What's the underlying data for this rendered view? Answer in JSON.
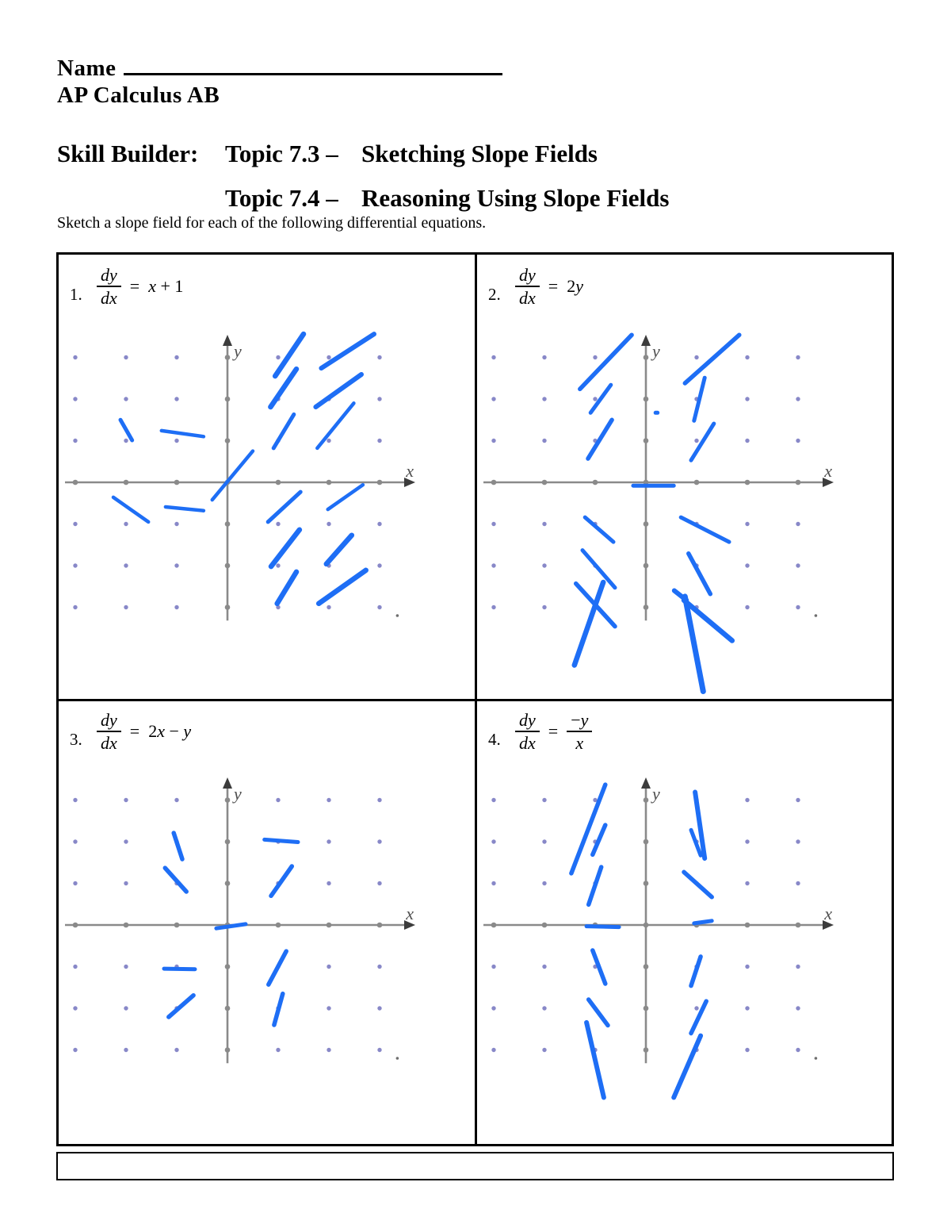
{
  "header": {
    "name_label": "Name",
    "course": "AP Calculus AB",
    "title_label": "Skill Builder:",
    "titles": [
      {
        "topic": "Topic 7.3 –",
        "subtitle": "Sketching Slope Fields"
      },
      {
        "topic": "Topic 7.4 –",
        "subtitle": "Reasoning Using Slope Fields"
      }
    ],
    "instruction": "Sketch a slope field for each of the following differential equations."
  },
  "colors": {
    "ink": "#000000",
    "pen_blue": "#1e6ef5",
    "dot_purple": "#7b7bc2",
    "axis_gray": "#8a8a8a",
    "arrow_dark": "#3c3c3c",
    "label_gray": "#4f4f4f",
    "stray_gray": "#6f6f6f"
  },
  "axes": {
    "x_label": "x",
    "y_label": "y"
  },
  "grid": {
    "cols": [
      -3,
      -2,
      -1,
      1,
      2,
      3
    ],
    "rows": [
      -3,
      -2,
      -1,
      1,
      2,
      3
    ],
    "x_ticks": [
      -3,
      -2,
      -1,
      0,
      1,
      2,
      3
    ],
    "y_ticks": [
      -3,
      -2,
      -1,
      1,
      2,
      3
    ]
  },
  "panels": [
    {
      "number": "1.",
      "eq": {
        "frac_num": "dy",
        "frac_den": "dx",
        "equals": "=",
        "rhs": "x + 1"
      },
      "strokes": [
        [
          -2.11,
          1.5,
          -1.88,
          1.01,
          5
        ],
        [
          -1.3,
          1.24,
          -0.47,
          1.1,
          4.5
        ],
        [
          -0.3,
          -0.42,
          0.5,
          0.75,
          4.5
        ],
        [
          0.94,
          2.55,
          1.5,
          3.56,
          6.5
        ],
        [
          0.85,
          1.81,
          1.36,
          2.72,
          6.5
        ],
        [
          0.91,
          0.82,
          1.31,
          1.63,
          5
        ],
        [
          1.85,
          2.74,
          2.89,
          3.56,
          6
        ],
        [
          1.74,
          1.81,
          2.64,
          2.59,
          6
        ],
        [
          1.77,
          0.82,
          2.49,
          1.9,
          4.5
        ],
        [
          -2.25,
          -0.36,
          -1.56,
          -0.95,
          4.5
        ],
        [
          -1.22,
          -0.59,
          -0.47,
          -0.68,
          4.5
        ],
        [
          0.8,
          -0.95,
          1.44,
          -0.23,
          5
        ],
        [
          1.98,
          -0.65,
          2.67,
          -0.06,
          4.5
        ],
        [
          0.86,
          -2.02,
          1.42,
          -1.14,
          6.5
        ],
        [
          1.95,
          -1.96,
          2.45,
          -1.27,
          6.5
        ],
        [
          0.98,
          -2.91,
          1.36,
          -2.15,
          6.5
        ],
        [
          1.8,
          -2.91,
          2.73,
          -2.11,
          6.5
        ]
      ]
    },
    {
      "number": "2.",
      "eq": {
        "frac_num": "dy",
        "frac_den": "dx",
        "equals": "=",
        "rhs": "2y"
      },
      "strokes": [
        [
          -1.3,
          2.24,
          -0.28,
          3.54,
          5.5
        ],
        [
          -1.09,
          1.67,
          -0.69,
          2.34,
          5
        ],
        [
          -1.14,
          0.57,
          -0.67,
          1.5,
          5.5
        ],
        [
          0.77,
          2.38,
          1.84,
          3.54,
          5.5
        ],
        [
          0.95,
          1.48,
          1.16,
          2.51,
          5
        ],
        [
          0.89,
          0.53,
          1.34,
          1.41,
          5
        ],
        [
          0.19,
          1.67,
          0.23,
          1.67,
          5
        ],
        [
          -0.25,
          -0.08,
          0.55,
          -0.08,
          5
        ],
        [
          -1.2,
          -0.84,
          -0.64,
          -1.43,
          5
        ],
        [
          -1.25,
          -1.63,
          -0.61,
          -2.53,
          5
        ],
        [
          -1.38,
          -2.43,
          -0.61,
          -3.46,
          5.5
        ],
        [
          -1.41,
          -4.39,
          -0.84,
          -2.4,
          6.5
        ],
        [
          0.69,
          -0.84,
          1.64,
          -1.43,
          5
        ],
        [
          0.84,
          -1.71,
          1.27,
          -2.68,
          5.5
        ],
        [
          0.56,
          -2.6,
          0.8,
          -2.83,
          6
        ],
        [
          0.77,
          -2.74,
          1.13,
          -5.02,
          7
        ],
        [
          0.75,
          -2.83,
          1.7,
          -3.8,
          6.5
        ]
      ]
    },
    {
      "number": "3.",
      "eq": {
        "frac_num": "dy",
        "frac_den": "dx",
        "equals": "=",
        "rhs": "2x − y"
      },
      "strokes": [
        [
          -1.06,
          2.21,
          -0.89,
          1.58,
          5.5
        ],
        [
          -1.23,
          1.37,
          -0.81,
          0.8,
          5.5
        ],
        [
          0.73,
          2.05,
          1.39,
          1.99,
          5
        ],
        [
          0.86,
          0.7,
          1.27,
          1.41,
          5.5
        ],
        [
          -0.22,
          -0.08,
          0.36,
          0.02,
          5
        ],
        [
          -1.25,
          -1.05,
          -0.64,
          -1.06,
          5
        ],
        [
          -1.16,
          -2.21,
          -0.67,
          -1.69,
          5.5
        ],
        [
          0.81,
          -1.43,
          1.16,
          -0.63,
          5.5
        ],
        [
          0.92,
          -2.4,
          1.09,
          -1.65,
          5.5
        ]
      ]
    },
    {
      "number": "4.",
      "eq": {
        "frac_num": "dy",
        "frac_den": "dx",
        "equals": "=",
        "rhs_frac": {
          "num": "−y",
          "den": "x"
        }
      },
      "strokes": [
        [
          -1.47,
          1.24,
          -0.8,
          3.37,
          5.5
        ],
        [
          -1.05,
          1.69,
          -0.8,
          2.4,
          5.5
        ],
        [
          -1.13,
          0.49,
          -0.88,
          1.39,
          5.5
        ],
        [
          -1.17,
          -0.03,
          -0.53,
          -0.05,
          5
        ],
        [
          0.97,
          3.19,
          1.16,
          1.6,
          6
        ],
        [
          0.89,
          2.28,
          1.08,
          1.67,
          5
        ],
        [
          0.75,
          1.27,
          1.3,
          0.67,
          5.5
        ],
        [
          0.95,
          0.04,
          1.3,
          0.1,
          5
        ],
        [
          -1.05,
          -0.61,
          -0.8,
          -1.41,
          5.5
        ],
        [
          -1.13,
          -1.79,
          -0.75,
          -2.41,
          5.5
        ],
        [
          -1.17,
          -2.34,
          -0.83,
          -4.14,
          6
        ],
        [
          0.89,
          -1.46,
          1.08,
          -0.76,
          5.5
        ],
        [
          0.89,
          -2.6,
          1.19,
          -1.83,
          5.5
        ],
        [
          0.55,
          -4.14,
          1.08,
          -2.66,
          6
        ]
      ]
    }
  ]
}
